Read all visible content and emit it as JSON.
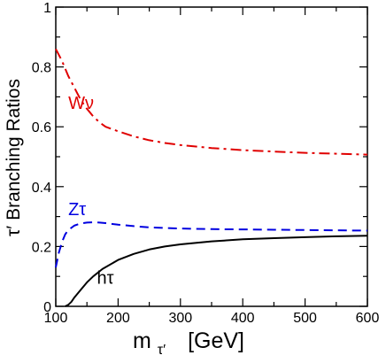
{
  "chart_data": {
    "type": "line",
    "xlabel_main": "m",
    "xlabel_sub": "τ′",
    "xlabel_unit": "[GeV]",
    "ylabel": "τ′ Branching Ratios",
    "xlim": [
      100,
      600
    ],
    "ylim": [
      0,
      1
    ],
    "xticks": [
      100,
      200,
      300,
      400,
      500,
      600
    ],
    "xtick_labels": [
      "100",
      "200",
      "300",
      "400",
      "500",
      "600"
    ],
    "yticks": [
      0,
      0.2,
      0.4,
      0.6,
      0.8,
      1
    ],
    "ytick_labels": [
      "0",
      "0.2",
      "0.4",
      "0.6",
      "0.8",
      "1"
    ],
    "grid": false,
    "series": [
      {
        "name": "Wν",
        "color": "#e00000",
        "dash": "dash-dot",
        "label_pos": {
          "x": 120,
          "y": 0.66
        },
        "x": [
          100,
          110,
          120,
          130,
          140,
          150,
          160,
          170,
          180,
          200,
          225,
          250,
          275,
          300,
          350,
          400,
          450,
          500,
          550,
          600
        ],
        "y": [
          0.86,
          0.82,
          0.77,
          0.73,
          0.69,
          0.66,
          0.635,
          0.615,
          0.6,
          0.585,
          0.568,
          0.555,
          0.546,
          0.539,
          0.529,
          0.522,
          0.517,
          0.513,
          0.51,
          0.507
        ]
      },
      {
        "name": "Zτ",
        "color": "#0000e0",
        "dash": "dash",
        "label_pos": {
          "x": 120,
          "y": 0.305
        },
        "x": [
          100,
          105,
          110,
          115,
          120,
          130,
          140,
          150,
          160,
          170,
          180,
          200,
          225,
          250,
          300,
          350,
          400,
          450,
          500,
          550,
          600
        ],
        "y": [
          0.13,
          0.18,
          0.215,
          0.24,
          0.255,
          0.27,
          0.277,
          0.28,
          0.281,
          0.28,
          0.278,
          0.273,
          0.268,
          0.264,
          0.26,
          0.258,
          0.257,
          0.256,
          0.255,
          0.254,
          0.253
        ]
      },
      {
        "name": "hτ",
        "color": "#000000",
        "dash": "solid",
        "label_pos": {
          "x": 166,
          "y": 0.075
        },
        "x": [
          115,
          120,
          125,
          130,
          140,
          150,
          160,
          175,
          200,
          225,
          250,
          275,
          300,
          350,
          400,
          450,
          500,
          550,
          600
        ],
        "y": [
          0.0,
          0.005,
          0.015,
          0.03,
          0.055,
          0.08,
          0.1,
          0.125,
          0.155,
          0.175,
          0.19,
          0.2,
          0.207,
          0.217,
          0.224,
          0.228,
          0.231,
          0.234,
          0.236
        ]
      }
    ]
  }
}
